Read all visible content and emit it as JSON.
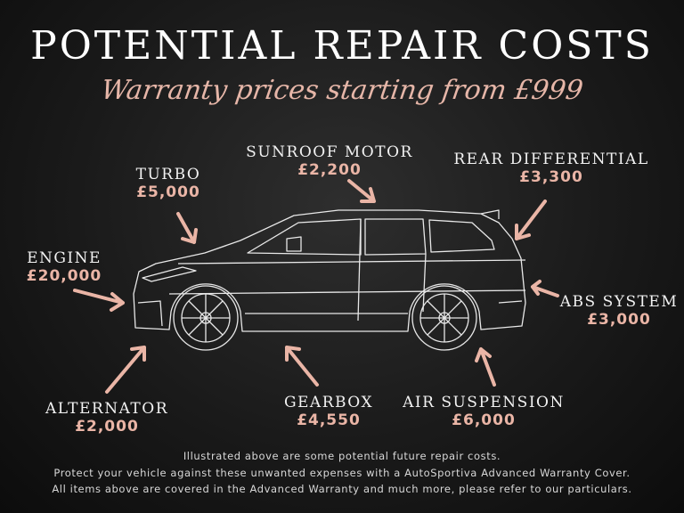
{
  "header": {
    "title": "POTENTIAL REPAIR COSTS",
    "subtitle": "Warranty prices starting from £999"
  },
  "accent_color": "#e6b6a8",
  "parts": [
    {
      "name": "TURBO",
      "price": "£5,000"
    },
    {
      "name": "SUNROOF MOTOR",
      "price": "£2,200"
    },
    {
      "name": "REAR DIFFERENTIAL",
      "price": "£3,300"
    },
    {
      "name": "ENGINE",
      "price": "£20,000"
    },
    {
      "name": "ABS SYSTEM",
      "price": "£3,000"
    },
    {
      "name": "ALTERNATOR",
      "price": "£2,000"
    },
    {
      "name": "GEARBOX",
      "price": "£4,550"
    },
    {
      "name": "AIR SUSPENSION",
      "price": "£6,000"
    }
  ],
  "footer": {
    "line1": "Illustrated above are some potential future repair costs.",
    "line2": "Protect your vehicle against these unwanted expenses with a AutoSportiva Advanced Warranty Cover.",
    "line3": "All items above are covered in the Advanced Warranty and much more, please refer to our particulars."
  }
}
